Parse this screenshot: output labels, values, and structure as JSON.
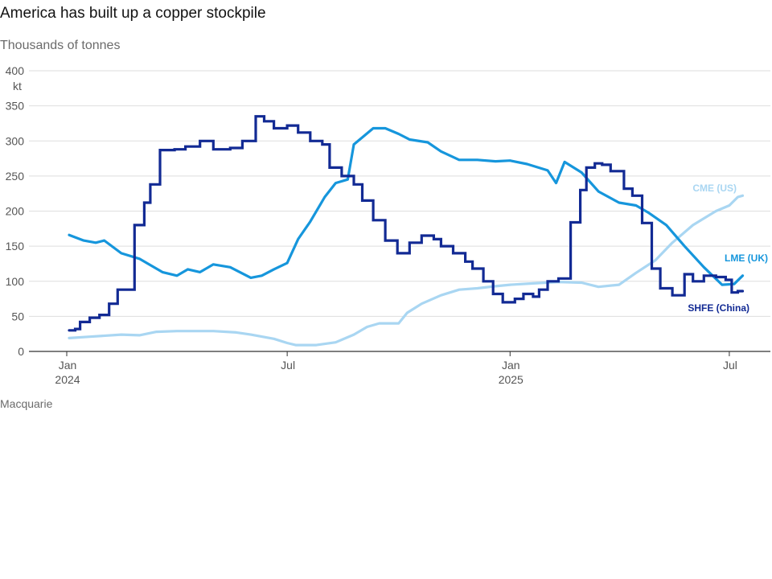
{
  "title": "America has built up a copper stockpile",
  "subtitle": "Thousands of tonnes",
  "source": "Macquarie",
  "y_unit": "kt",
  "colors": {
    "cme": "#a9d6f2",
    "lme": "#1696dc",
    "shfe": "#122a94",
    "grid": "#dedede",
    "axis": "#333333"
  },
  "chart_data": {
    "type": "line",
    "title": "America has built up a copper stockpile",
    "ylabel": "Thousands of tonnes",
    "xlabel": "",
    "xlim": [
      "2024-01-01",
      "2025-07-15"
    ],
    "ylim": [
      0,
      400
    ],
    "yticks": [
      0,
      50,
      100,
      150,
      200,
      250,
      300,
      350,
      400
    ],
    "xticks": [
      {
        "date": "2024-01-01",
        "label": [
          "Jan",
          "2024"
        ]
      },
      {
        "date": "2024-07-01",
        "label": [
          "Jul",
          ""
        ]
      },
      {
        "date": "2025-01-01",
        "label": [
          "Jan",
          "2025"
        ]
      },
      {
        "date": "2025-07-01",
        "label": [
          "Jul",
          ""
        ]
      }
    ],
    "grid": true,
    "series": [
      {
        "key": "cme",
        "name": "CME (US)",
        "step": false,
        "points": [
          [
            "2024-01-03",
            19
          ],
          [
            "2024-01-20",
            21
          ],
          [
            "2024-02-15",
            24
          ],
          [
            "2024-03-01",
            23
          ],
          [
            "2024-03-15",
            28
          ],
          [
            "2024-04-01",
            29
          ],
          [
            "2024-05-01",
            29
          ],
          [
            "2024-05-20",
            27
          ],
          [
            "2024-06-01",
            24
          ],
          [
            "2024-06-20",
            18
          ],
          [
            "2024-07-01",
            12
          ],
          [
            "2024-07-08",
            9
          ],
          [
            "2024-07-25",
            9
          ],
          [
            "2024-08-10",
            13
          ],
          [
            "2024-08-25",
            24
          ],
          [
            "2024-09-05",
            35
          ],
          [
            "2024-09-15",
            40
          ],
          [
            "2024-10-01",
            40
          ],
          [
            "2024-10-08",
            55
          ],
          [
            "2024-10-20",
            68
          ],
          [
            "2024-11-05",
            80
          ],
          [
            "2024-11-20",
            88
          ],
          [
            "2024-12-05",
            90
          ],
          [
            "2024-12-20",
            93
          ],
          [
            "2025-01-01",
            95
          ],
          [
            "2025-01-20",
            97
          ],
          [
            "2025-02-10",
            99
          ],
          [
            "2025-03-01",
            98
          ],
          [
            "2025-03-15",
            92
          ],
          [
            "2025-04-01",
            95
          ],
          [
            "2025-04-15",
            112
          ],
          [
            "2025-05-01",
            130
          ],
          [
            "2025-05-15",
            155
          ],
          [
            "2025-06-01",
            180
          ],
          [
            "2025-06-20",
            200
          ],
          [
            "2025-07-01",
            208
          ],
          [
            "2025-07-08",
            220
          ],
          [
            "2025-07-12",
            222
          ]
        ]
      },
      {
        "key": "lme",
        "name": "LME (UK)",
        "step": false,
        "points": [
          [
            "2024-01-03",
            166
          ],
          [
            "2024-01-15",
            158
          ],
          [
            "2024-01-25",
            155
          ],
          [
            "2024-02-01",
            158
          ],
          [
            "2024-02-15",
            140
          ],
          [
            "2024-03-01",
            132
          ],
          [
            "2024-03-08",
            125
          ],
          [
            "2024-03-20",
            113
          ],
          [
            "2024-04-01",
            108
          ],
          [
            "2024-04-10",
            117
          ],
          [
            "2024-04-20",
            113
          ],
          [
            "2024-05-01",
            124
          ],
          [
            "2024-05-15",
            120
          ],
          [
            "2024-06-01",
            105
          ],
          [
            "2024-06-10",
            108
          ],
          [
            "2024-06-20",
            117
          ],
          [
            "2024-07-01",
            126
          ],
          [
            "2024-07-10",
            160
          ],
          [
            "2024-07-20",
            185
          ],
          [
            "2024-08-01",
            220
          ],
          [
            "2024-08-10",
            240
          ],
          [
            "2024-08-20",
            245
          ],
          [
            "2024-08-25",
            295
          ],
          [
            "2024-09-01",
            305
          ],
          [
            "2024-09-10",
            318
          ],
          [
            "2024-09-20",
            318
          ],
          [
            "2024-10-01",
            310
          ],
          [
            "2024-10-10",
            302
          ],
          [
            "2024-10-25",
            298
          ],
          [
            "2024-11-05",
            285
          ],
          [
            "2024-11-20",
            273
          ],
          [
            "2024-12-05",
            273
          ],
          [
            "2024-12-20",
            271
          ],
          [
            "2025-01-01",
            272
          ],
          [
            "2025-01-15",
            267
          ],
          [
            "2025-02-01",
            258
          ],
          [
            "2025-02-08",
            240
          ],
          [
            "2025-02-15",
            270
          ],
          [
            "2025-03-01",
            255
          ],
          [
            "2025-03-15",
            228
          ],
          [
            "2025-04-01",
            212
          ],
          [
            "2025-04-15",
            208
          ],
          [
            "2025-04-25",
            198
          ],
          [
            "2025-05-10",
            180
          ],
          [
            "2025-05-25",
            150
          ],
          [
            "2025-06-10",
            120
          ],
          [
            "2025-06-25",
            95
          ],
          [
            "2025-07-05",
            96
          ],
          [
            "2025-07-12",
            108
          ]
        ]
      },
      {
        "key": "shfe",
        "name": "SHFE (China)",
        "step": true,
        "points": [
          [
            "2024-01-03",
            30
          ],
          [
            "2024-01-08",
            32
          ],
          [
            "2024-01-12",
            42
          ],
          [
            "2024-01-20",
            48
          ],
          [
            "2024-01-28",
            52
          ],
          [
            "2024-02-05",
            68
          ],
          [
            "2024-02-12",
            88
          ],
          [
            "2024-02-26",
            180
          ],
          [
            "2024-03-05",
            212
          ],
          [
            "2024-03-10",
            238
          ],
          [
            "2024-03-18",
            287
          ],
          [
            "2024-03-30",
            288
          ],
          [
            "2024-04-08",
            292
          ],
          [
            "2024-04-20",
            300
          ],
          [
            "2024-05-01",
            288
          ],
          [
            "2024-05-15",
            290
          ],
          [
            "2024-05-25",
            300
          ],
          [
            "2024-06-05",
            335
          ],
          [
            "2024-06-12",
            328
          ],
          [
            "2024-06-20",
            318
          ],
          [
            "2024-07-01",
            322
          ],
          [
            "2024-07-10",
            312
          ],
          [
            "2024-07-20",
            300
          ],
          [
            "2024-07-30",
            295
          ],
          [
            "2024-08-05",
            262
          ],
          [
            "2024-08-15",
            250
          ],
          [
            "2024-08-25",
            238
          ],
          [
            "2024-09-01",
            215
          ],
          [
            "2024-09-10",
            187
          ],
          [
            "2024-09-20",
            158
          ],
          [
            "2024-09-30",
            140
          ],
          [
            "2024-10-10",
            155
          ],
          [
            "2024-10-20",
            165
          ],
          [
            "2024-10-30",
            160
          ],
          [
            "2024-11-05",
            150
          ],
          [
            "2024-11-15",
            140
          ],
          [
            "2024-11-25",
            128
          ],
          [
            "2024-12-01",
            118
          ],
          [
            "2024-12-10",
            100
          ],
          [
            "2024-12-18",
            82
          ],
          [
            "2024-12-26",
            70
          ],
          [
            "2025-01-05",
            75
          ],
          [
            "2025-01-12",
            82
          ],
          [
            "2025-01-20",
            78
          ],
          [
            "2025-01-25",
            88
          ],
          [
            "2025-02-01",
            100
          ],
          [
            "2025-02-10",
            104
          ],
          [
            "2025-02-20",
            184
          ],
          [
            "2025-02-28",
            230
          ],
          [
            "2025-03-05",
            262
          ],
          [
            "2025-03-12",
            268
          ],
          [
            "2025-03-18",
            266
          ],
          [
            "2025-03-25",
            257
          ],
          [
            "2025-04-05",
            232
          ],
          [
            "2025-04-12",
            222
          ],
          [
            "2025-04-20",
            183
          ],
          [
            "2025-04-28",
            118
          ],
          [
            "2025-05-05",
            90
          ],
          [
            "2025-05-15",
            80
          ],
          [
            "2025-05-25",
            110
          ],
          [
            "2025-06-01",
            100
          ],
          [
            "2025-06-10",
            108
          ],
          [
            "2025-06-20",
            106
          ],
          [
            "2025-06-28",
            102
          ],
          [
            "2025-07-03",
            84
          ],
          [
            "2025-07-08",
            86
          ],
          [
            "2025-07-12",
            86
          ]
        ]
      }
    ]
  }
}
